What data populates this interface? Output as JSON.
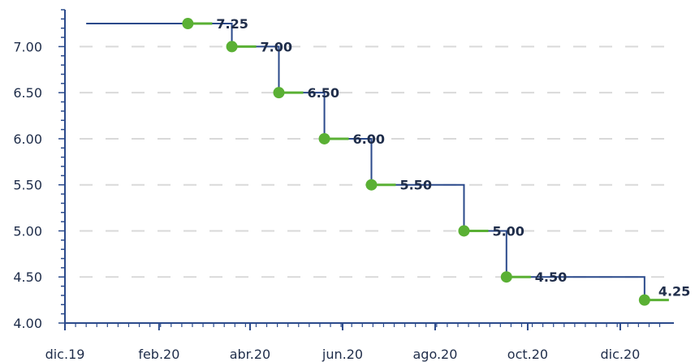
{
  "chart_data": {
    "type": "line",
    "style": "step",
    "x_ticks": [
      "dic.19",
      "feb.20",
      "abr.20",
      "jun.20",
      "ago.20",
      "oct.20",
      "dic.20"
    ],
    "y_ticks": [
      "4.00",
      "4.50",
      "5.00",
      "5.50",
      "6.00",
      "6.50",
      "7.00"
    ],
    "ylim": [
      4.0,
      7.4
    ],
    "xlim": [
      "2019-12-01",
      "2020-12-31"
    ],
    "grid": {
      "horizontal": true,
      "style": "dashed"
    },
    "series": [
      {
        "points": [
          {
            "x": "2019-12-15",
            "y": 7.25
          },
          {
            "x": "2020-02-20",
            "y": 7.25
          },
          {
            "x": "2020-03-20",
            "y": 7.0
          },
          {
            "x": "2020-04-20",
            "y": 6.5
          },
          {
            "x": "2020-05-20",
            "y": 6.0
          },
          {
            "x": "2020-06-20",
            "y": 5.5
          },
          {
            "x": "2020-08-20",
            "y": 5.0
          },
          {
            "x": "2020-09-17",
            "y": 4.5
          },
          {
            "x": "2020-12-17",
            "y": 4.25
          },
          {
            "x": "2020-12-31",
            "y": 4.25
          }
        ],
        "markers": [
          {
            "x": "2020-02-20",
            "y": 7.25,
            "label": "7.25"
          },
          {
            "x": "2020-03-20",
            "y": 7.0,
            "label": "7.00"
          },
          {
            "x": "2020-04-20",
            "y": 6.5,
            "label": "6.50"
          },
          {
            "x": "2020-05-20",
            "y": 6.0,
            "label": "6.00"
          },
          {
            "x": "2020-06-20",
            "y": 5.5,
            "label": "5.50"
          },
          {
            "x": "2020-08-20",
            "y": 5.0,
            "label": "5.00"
          },
          {
            "x": "2020-09-17",
            "y": 4.5,
            "label": "4.50"
          },
          {
            "x": "2020-12-17",
            "y": 4.25,
            "label": "4.25"
          }
        ]
      }
    ],
    "colors": {
      "line": "#2b4a8b",
      "marker": "#5ab034",
      "text": "#1f2d4a",
      "grid": "#d9d9d9",
      "axis": "#2b4a8b"
    }
  }
}
